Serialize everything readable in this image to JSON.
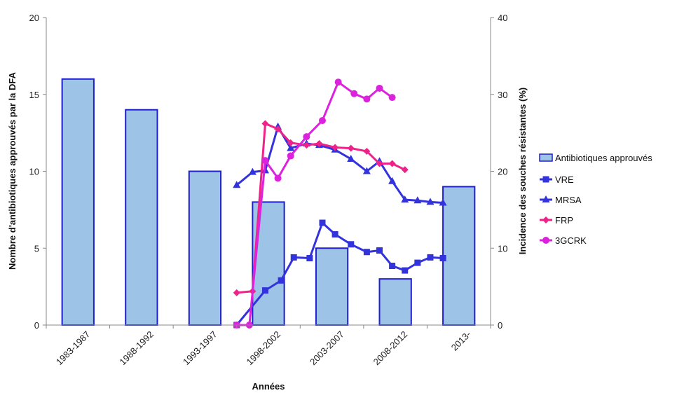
{
  "chart_data": {
    "type": "bar",
    "categories": [
      "1983-1987",
      "1988-1992",
      "1993-1997",
      "1998-2002",
      "2003-2007",
      "2008-2012",
      "2013-"
    ],
    "xlabel": "Années",
    "ylabel": "Nombre d'antibiotiques approuvés par la DFA",
    "y2label": "Incidence des souches résistantes (%)",
    "ylim": [
      0,
      20
    ],
    "y2lim": [
      0,
      40
    ],
    "yticks": [
      0,
      5,
      10,
      15,
      20
    ],
    "y2ticks": [
      0,
      10,
      20,
      30,
      40
    ],
    "bar_series": {
      "name": "Antibiotiques approuvés",
      "color": "#9dc3e6",
      "edge_color": "#1f1fcc",
      "values": [
        16,
        14,
        10,
        8,
        5,
        3,
        9
      ]
    },
    "line_series": [
      {
        "name": "VRE",
        "color": "#3333dd",
        "marker": "square",
        "axis": "secondary",
        "points": [
          [
            3.0,
            0
          ],
          [
            3.45,
            4.5
          ],
          [
            3.7,
            5.8
          ],
          [
            3.9,
            8.8
          ],
          [
            4.15,
            8.7
          ],
          [
            4.35,
            13.3
          ],
          [
            4.55,
            11.8
          ],
          [
            4.8,
            10.5
          ],
          [
            5.05,
            9.5
          ],
          [
            5.25,
            9.7
          ],
          [
            5.45,
            7.7
          ],
          [
            5.65,
            7.1
          ],
          [
            5.85,
            8.1
          ],
          [
            6.05,
            8.8
          ],
          [
            6.25,
            8.7
          ]
        ]
      },
      {
        "name": "MRSA",
        "color": "#3333dd",
        "marker": "triangle",
        "axis": "secondary",
        "points": [
          [
            3.0,
            18.2
          ],
          [
            3.25,
            19.9
          ],
          [
            3.45,
            20.1
          ],
          [
            3.65,
            25.8
          ],
          [
            3.85,
            23.0
          ],
          [
            4.1,
            23.6
          ],
          [
            4.3,
            23.4
          ],
          [
            4.55,
            22.8
          ],
          [
            4.8,
            21.6
          ],
          [
            5.05,
            20.0
          ],
          [
            5.25,
            21.3
          ],
          [
            5.45,
            18.7
          ],
          [
            5.65,
            16.3
          ],
          [
            5.85,
            16.2
          ],
          [
            6.05,
            16.0
          ],
          [
            6.25,
            15.9
          ]
        ]
      },
      {
        "name": "FRP",
        "color": "#ee2288",
        "marker": "diamond",
        "axis": "secondary",
        "points": [
          [
            3.0,
            4.2
          ],
          [
            3.25,
            4.4
          ],
          [
            3.45,
            26.2
          ],
          [
            3.65,
            25.5
          ],
          [
            3.85,
            23.7
          ],
          [
            4.1,
            23.4
          ],
          [
            4.3,
            23.6
          ],
          [
            4.55,
            23.1
          ],
          [
            4.8,
            23.0
          ],
          [
            5.05,
            22.6
          ],
          [
            5.25,
            21.0
          ],
          [
            5.45,
            21.0
          ],
          [
            5.65,
            20.2
          ]
        ]
      },
      {
        "name": "3GCRK",
        "color": "#dd22dd",
        "marker": "circle",
        "axis": "secondary",
        "points": [
          [
            3.0,
            0
          ],
          [
            3.2,
            0
          ],
          [
            3.45,
            21.4
          ],
          [
            3.65,
            19.1
          ],
          [
            3.85,
            22.0
          ],
          [
            4.1,
            24.5
          ],
          [
            4.35,
            26.6
          ],
          [
            4.6,
            31.6
          ],
          [
            4.85,
            30.1
          ],
          [
            5.05,
            29.4
          ],
          [
            5.25,
            30.8
          ],
          [
            5.45,
            29.6
          ]
        ]
      }
    ],
    "legend": [
      "Antibiotiques approuvés",
      "VRE",
      "MRSA",
      "FRP",
      "3GCRK"
    ],
    "legend_position": "right",
    "grid": false
  }
}
